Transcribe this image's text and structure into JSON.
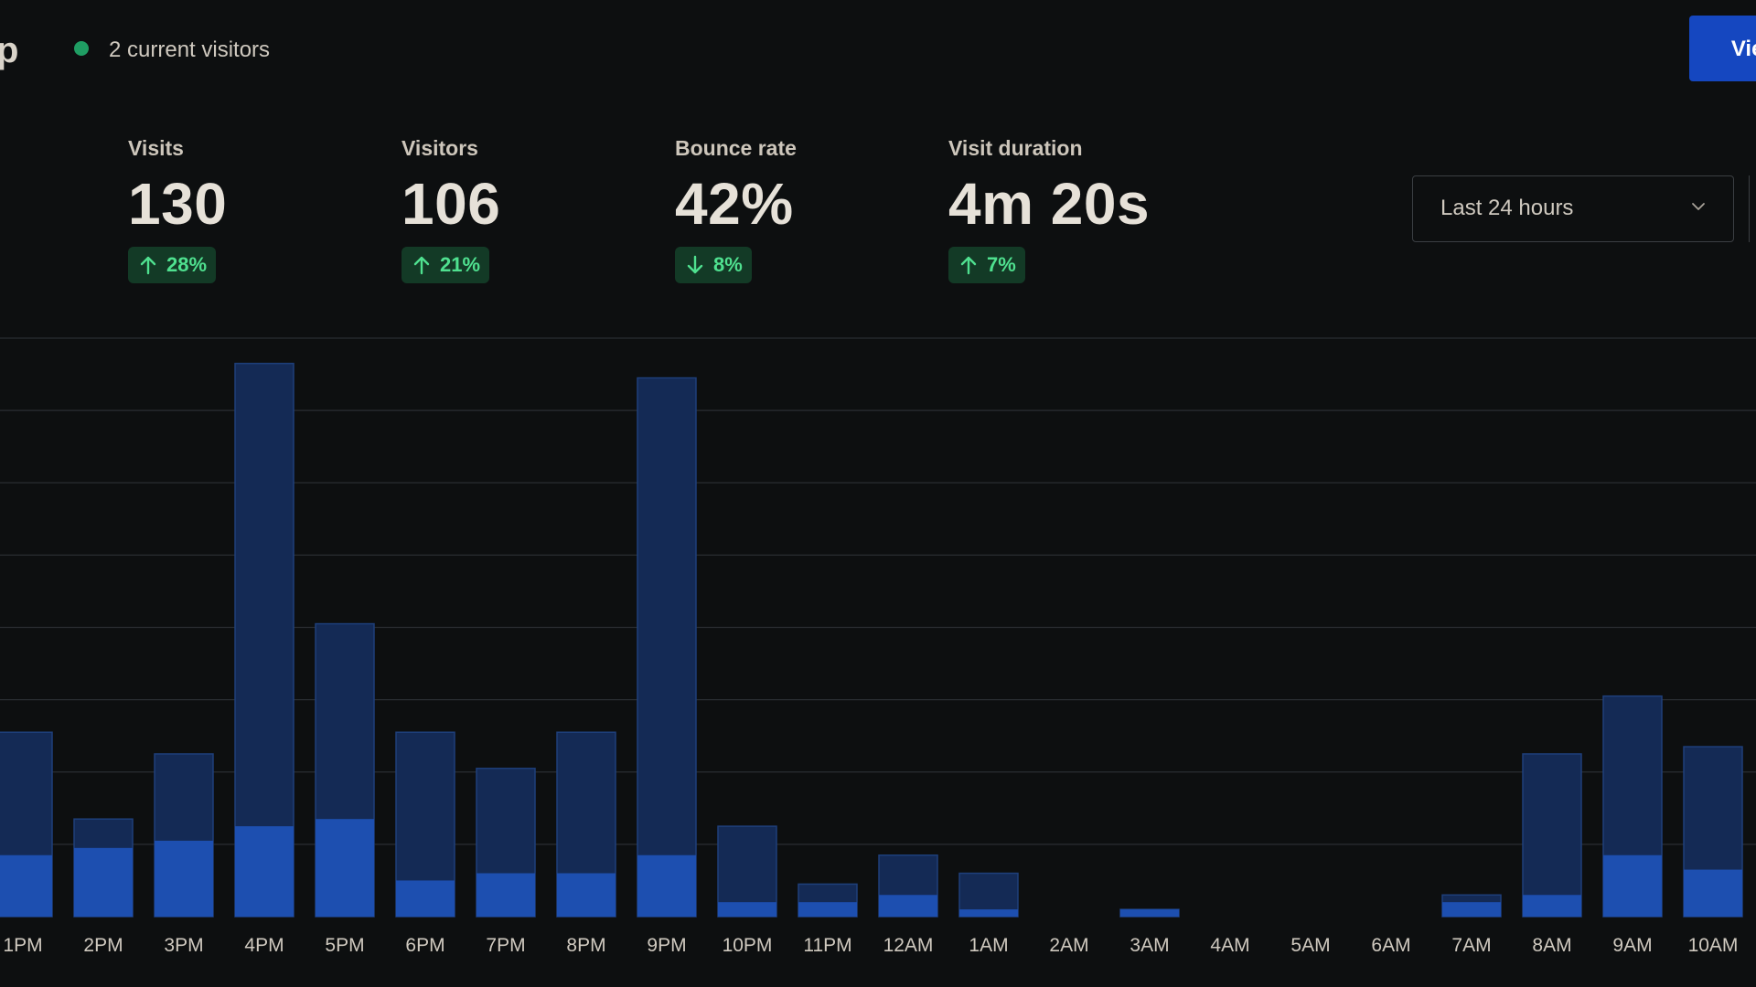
{
  "header": {
    "site_name": "p",
    "current_visitors": "2 current visitors",
    "view_button": "View"
  },
  "stats": [
    {
      "label": "Visits",
      "value": "130",
      "change": "28%",
      "direction": "up"
    },
    {
      "label": "Visitors",
      "value": "106",
      "change": "21%",
      "direction": "up"
    },
    {
      "label": "Bounce rate",
      "value": "42%",
      "change": "8%",
      "direction": "down"
    },
    {
      "label": "Visit duration",
      "value": "4m 20s",
      "change": "7%",
      "direction": "up"
    }
  ],
  "range_select": {
    "value": "Last 24 hours"
  },
  "colors": {
    "background": "#0d0f10",
    "live_dot": "#1f9d63",
    "accent": "#1547c0",
    "bar_total": "#142a55",
    "bar_total_border": "#1e3f7a",
    "bar_part": "#1d4fb0",
    "change_badge_bg": "#133a26",
    "change_badge_text": "#4fe08f",
    "grid": "#2a2e32"
  },
  "chart_data": {
    "type": "bar",
    "stacked_overlap": true,
    "categories": [
      "1PM",
      "2PM",
      "3PM",
      "4PM",
      "5PM",
      "6PM",
      "7PM",
      "8PM",
      "9PM",
      "10PM",
      "11PM",
      "12AM",
      "1AM",
      "2AM",
      "3AM",
      "4AM",
      "5AM",
      "6AM",
      "7AM",
      "8AM",
      "9AM",
      "10AM"
    ],
    "series": [
      {
        "values": [
          51,
          27,
          45,
          153,
          81,
          51,
          41,
          51,
          149,
          25,
          9,
          17,
          12,
          0,
          2,
          0,
          0,
          0,
          6,
          45,
          61,
          47
        ]
      },
      {
        "values": [
          17,
          19,
          21,
          25,
          27,
          10,
          12,
          12,
          17,
          4,
          4,
          6,
          2,
          0,
          2,
          0,
          0,
          0,
          4,
          6,
          17,
          13
        ]
      }
    ],
    "ylim": [
      0,
      160
    ],
    "grid": true,
    "grid_lines": 8
  }
}
